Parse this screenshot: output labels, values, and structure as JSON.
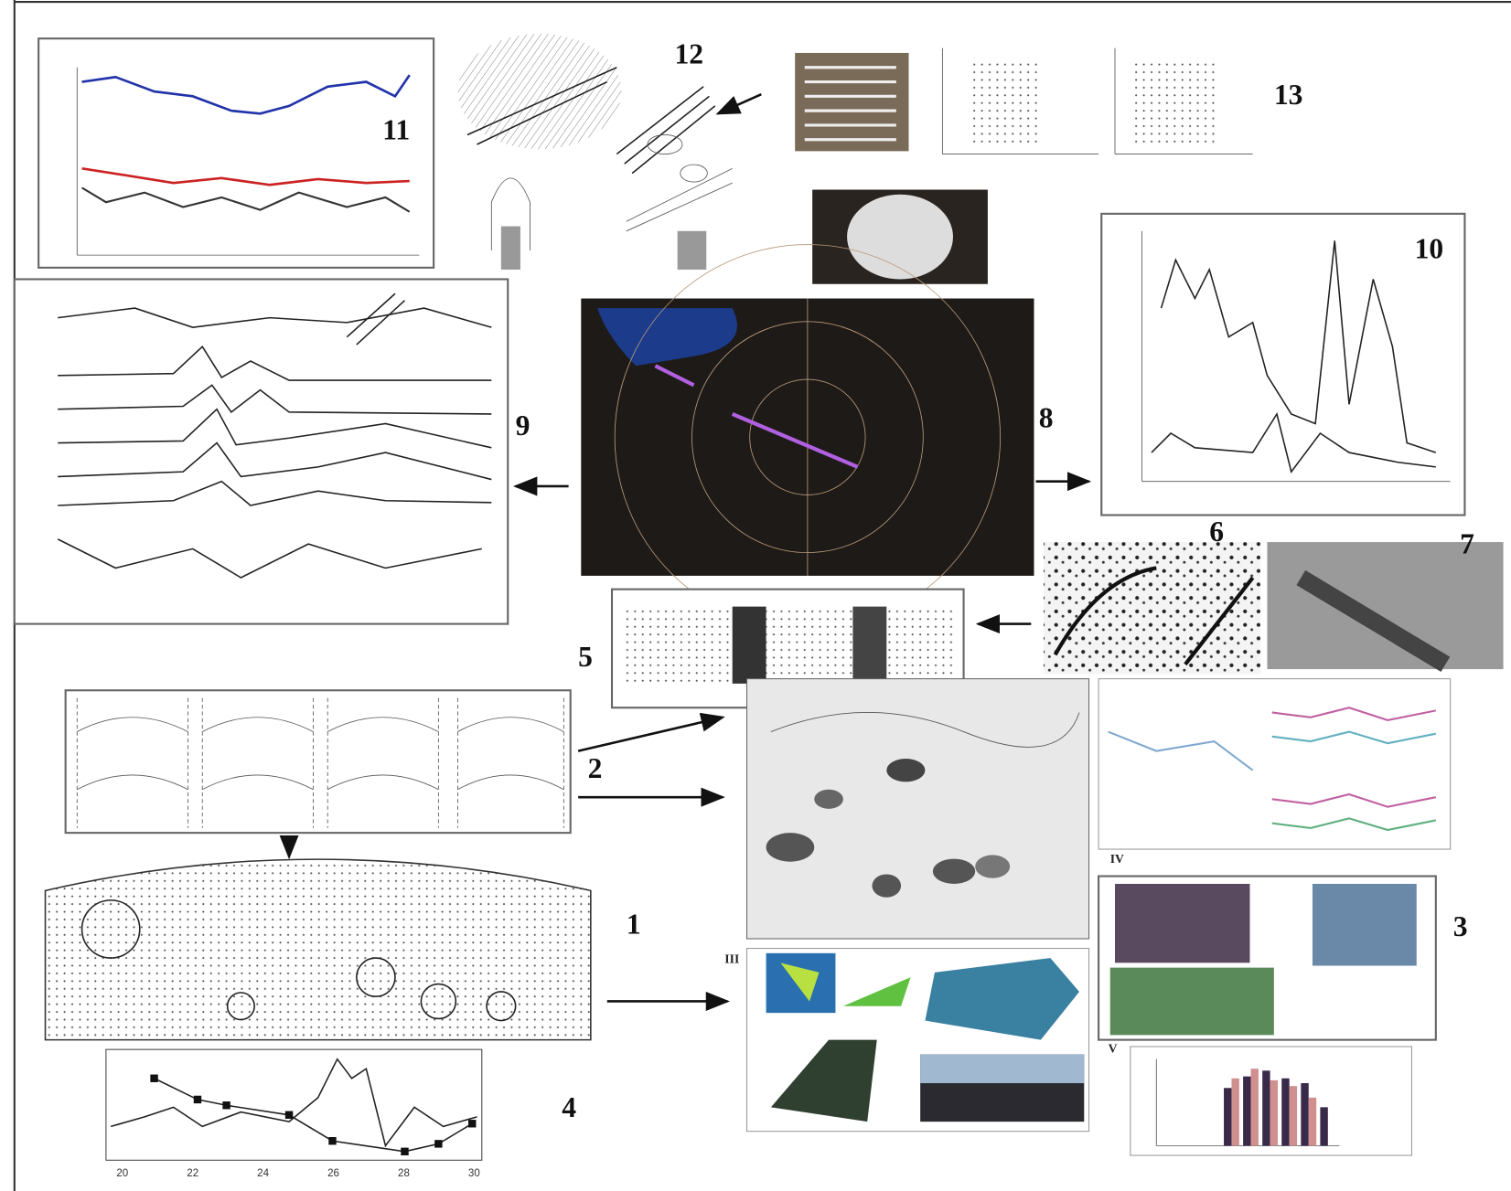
{
  "panels": [
    {
      "label": "1"
    },
    {
      "label": "2"
    },
    {
      "label": "3"
    },
    {
      "label": "4"
    },
    {
      "label": "5"
    },
    {
      "label": "6"
    },
    {
      "label": "7"
    },
    {
      "label": "8"
    },
    {
      "label": "9"
    },
    {
      "label": "10"
    },
    {
      "label": "11"
    },
    {
      "label": "12"
    },
    {
      "label": "13"
    }
  ],
  "sub_labels": [
    "III",
    "IV",
    "V"
  ],
  "panel_4": {
    "x_ticks": [
      "20",
      "22",
      "24",
      "26",
      "28",
      "30"
    ]
  }
}
